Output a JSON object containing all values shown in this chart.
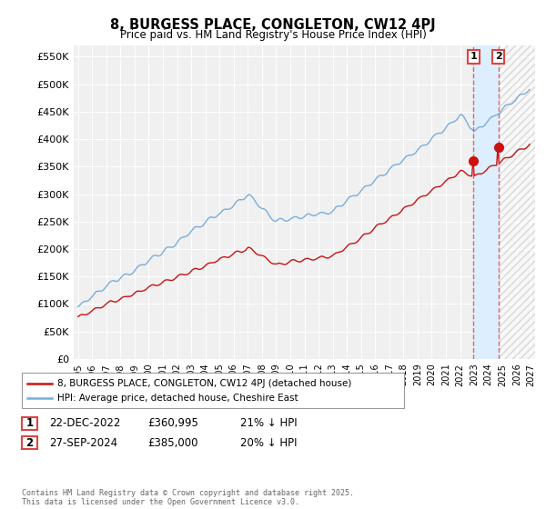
{
  "title": "8, BURGESS PLACE, CONGLETON, CW12 4PJ",
  "subtitle": "Price paid vs. HM Land Registry's House Price Index (HPI)",
  "ylabel_ticks": [
    "£0",
    "£50K",
    "£100K",
    "£150K",
    "£200K",
    "£250K",
    "£300K",
    "£350K",
    "£400K",
    "£450K",
    "£500K",
    "£550K"
  ],
  "ytick_values": [
    0,
    50000,
    100000,
    150000,
    200000,
    250000,
    300000,
    350000,
    400000,
    450000,
    500000,
    550000
  ],
  "ylim": [
    0,
    570000
  ],
  "xlim_left": 1994.7,
  "xlim_right": 2027.3,
  "hpi_color": "#7aaddb",
  "price_color": "#cc1111",
  "dashed_line_color": "#dd4444",
  "shade_color": "#ddeeff",
  "hatch_color": "#cccccc",
  "annotation1_label": "1",
  "annotation2_label": "2",
  "annotation1_date": "22-DEC-2022",
  "annotation1_price": "£360,995",
  "annotation1_hpi": "21% ↓ HPI",
  "annotation2_date": "27-SEP-2024",
  "annotation2_price": "£385,000",
  "annotation2_hpi": "20% ↓ HPI",
  "p1_x": 2022.958,
  "p1_y": 360995,
  "p2_x": 2024.708,
  "p2_y": 385000,
  "legend1": "8, BURGESS PLACE, CONGLETON, CW12 4PJ (detached house)",
  "legend2": "HPI: Average price, detached house, Cheshire East",
  "footer": "Contains HM Land Registry data © Crown copyright and database right 2025.\nThis data is licensed under the Open Government Licence v3.0.",
  "background_color": "#ffffff",
  "plot_bg_color": "#f0f0f0"
}
